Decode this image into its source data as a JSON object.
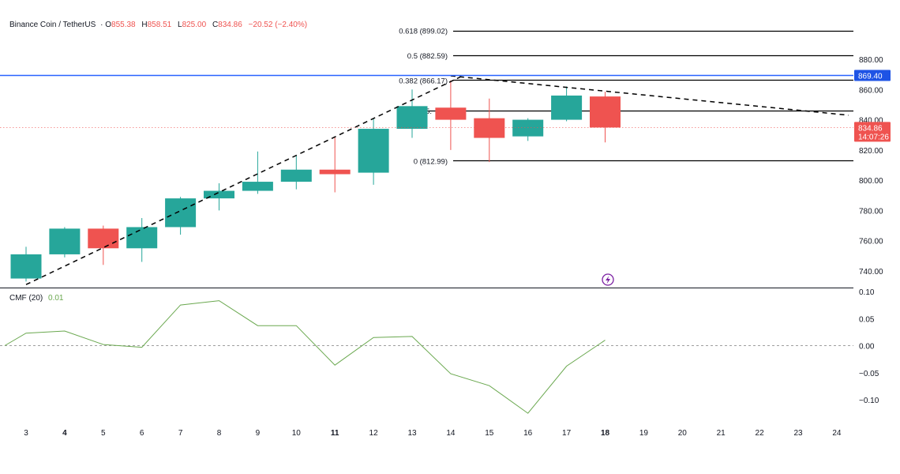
{
  "header": {
    "symbol": "Binance Coin / TetherUS",
    "o_label": "O",
    "o_value": "855.38",
    "h_label": "H",
    "h_value": "858.51",
    "l_label": "L",
    "l_value": "825.00",
    "c_label": "C",
    "c_value": "834.86",
    "change": "−20.52 (−2.40%)"
  },
  "indicator": {
    "label": "CMF (20)",
    "value": "0.01"
  },
  "price_badges": {
    "level": "869.40",
    "last": "834.86",
    "countdown": "14:07:26"
  },
  "colors": {
    "up": "#26a69a",
    "down": "#ef5350",
    "cmf_line": "#6aa84f",
    "level_line": "#2962ff",
    "level_badge": "#1e53e5",
    "fib_line": "#000000",
    "last_price_dotted": "#ef5350",
    "alert_icon": "#7b1fa2"
  },
  "alert_icon": "lightning-alert-icon",
  "chart_data": [
    {
      "type": "candlestick",
      "title": "",
      "x": [
        "3",
        "4",
        "5",
        "6",
        "7",
        "8",
        "9",
        "10",
        "11",
        "12",
        "13",
        "14",
        "15",
        "16",
        "17",
        "18"
      ],
      "bold_ticks": [
        "4",
        "11",
        "18"
      ],
      "axis_ticks_x": [
        "3",
        "4",
        "5",
        "6",
        "7",
        "8",
        "9",
        "10",
        "11",
        "12",
        "13",
        "14",
        "15",
        "16",
        "17",
        "18",
        "19",
        "20",
        "21",
        "22",
        "23",
        "24"
      ],
      "ohlc": [
        {
          "x": "3",
          "o": 735,
          "h": 756,
          "l": 733,
          "c": 751
        },
        {
          "x": "4",
          "o": 751,
          "h": 769,
          "l": 749,
          "c": 768
        },
        {
          "x": "5",
          "o": 768,
          "h": 770,
          "l": 744,
          "c": 755
        },
        {
          "x": "6",
          "o": 755,
          "h": 775,
          "l": 746,
          "c": 769
        },
        {
          "x": "7",
          "o": 769,
          "h": 789,
          "l": 764,
          "c": 788
        },
        {
          "x": "8",
          "o": 788,
          "h": 798,
          "l": 780,
          "c": 793
        },
        {
          "x": "9",
          "o": 793,
          "h": 819,
          "l": 791,
          "c": 799
        },
        {
          "x": "10",
          "o": 799,
          "h": 816,
          "l": 794,
          "c": 807
        },
        {
          "x": "11",
          "o": 807,
          "h": 829,
          "l": 792,
          "c": 804
        },
        {
          "x": "12",
          "o": 805,
          "h": 841,
          "l": 797,
          "c": 834
        },
        {
          "x": "13",
          "o": 834,
          "h": 860,
          "l": 828,
          "c": 849
        },
        {
          "x": "14",
          "o": 848,
          "h": 866,
          "l": 820,
          "c": 840
        },
        {
          "x": "15",
          "o": 841,
          "h": 854,
          "l": 812,
          "c": 828
        },
        {
          "x": "16",
          "o": 829,
          "h": 841,
          "l": 826,
          "c": 840
        },
        {
          "x": "17",
          "o": 840,
          "h": 862,
          "l": 839,
          "c": 856
        },
        {
          "x": "18",
          "o": 855.38,
          "h": 858.51,
          "l": 825.0,
          "c": 834.86
        }
      ],
      "y_ticks": [
        740,
        760,
        780,
        800,
        820,
        840,
        860,
        880
      ],
      "ylim": [
        730,
        905
      ],
      "fib_levels": [
        {
          "label": "0.618 (899.02)",
          "value": 899.02
        },
        {
          "label": "0.5 (882.59)",
          "value": 882.59
        },
        {
          "label": "0.382 (866.17)",
          "value": 866.17
        },
        {
          "label": "0.236 (845.80)",
          "value": 845.8
        },
        {
          "label": "0 (812.99)",
          "value": 812.99
        }
      ],
      "fib_visible_label_0236": "5.",
      "horizontal_level": 869.4,
      "last_price": 834.86,
      "trendlines": [
        {
          "from": {
            "x": "3",
            "y": 731
          },
          "to": {
            "x": "14",
            "y": 869
          }
        },
        {
          "from": {
            "x": "14",
            "y": 869
          },
          "to": {
            "x": "24",
            "y": 843
          }
        }
      ]
    },
    {
      "type": "line",
      "title": "CMF (20)",
      "x": [
        "2.5",
        "3",
        "4",
        "5",
        "6",
        "7",
        "8",
        "9",
        "10",
        "11",
        "12",
        "13",
        "14",
        "15",
        "16",
        "17",
        "18"
      ],
      "values": [
        0.0,
        0.023,
        0.027,
        0.002,
        -0.003,
        0.075,
        0.083,
        0.037,
        0.037,
        -0.036,
        0.015,
        0.017,
        -0.052,
        -0.074,
        -0.125,
        -0.038,
        0.01
      ],
      "y_ticks": [
        0.1,
        0.05,
        0.0,
        -0.05,
        -0.1
      ],
      "y_tick_labels": [
        "0.10",
        "0.05",
        "0.00",
        "−0.05",
        "−0.10"
      ],
      "ylim": [
        -0.143,
        0.1
      ],
      "zero_line": "dashed"
    }
  ]
}
